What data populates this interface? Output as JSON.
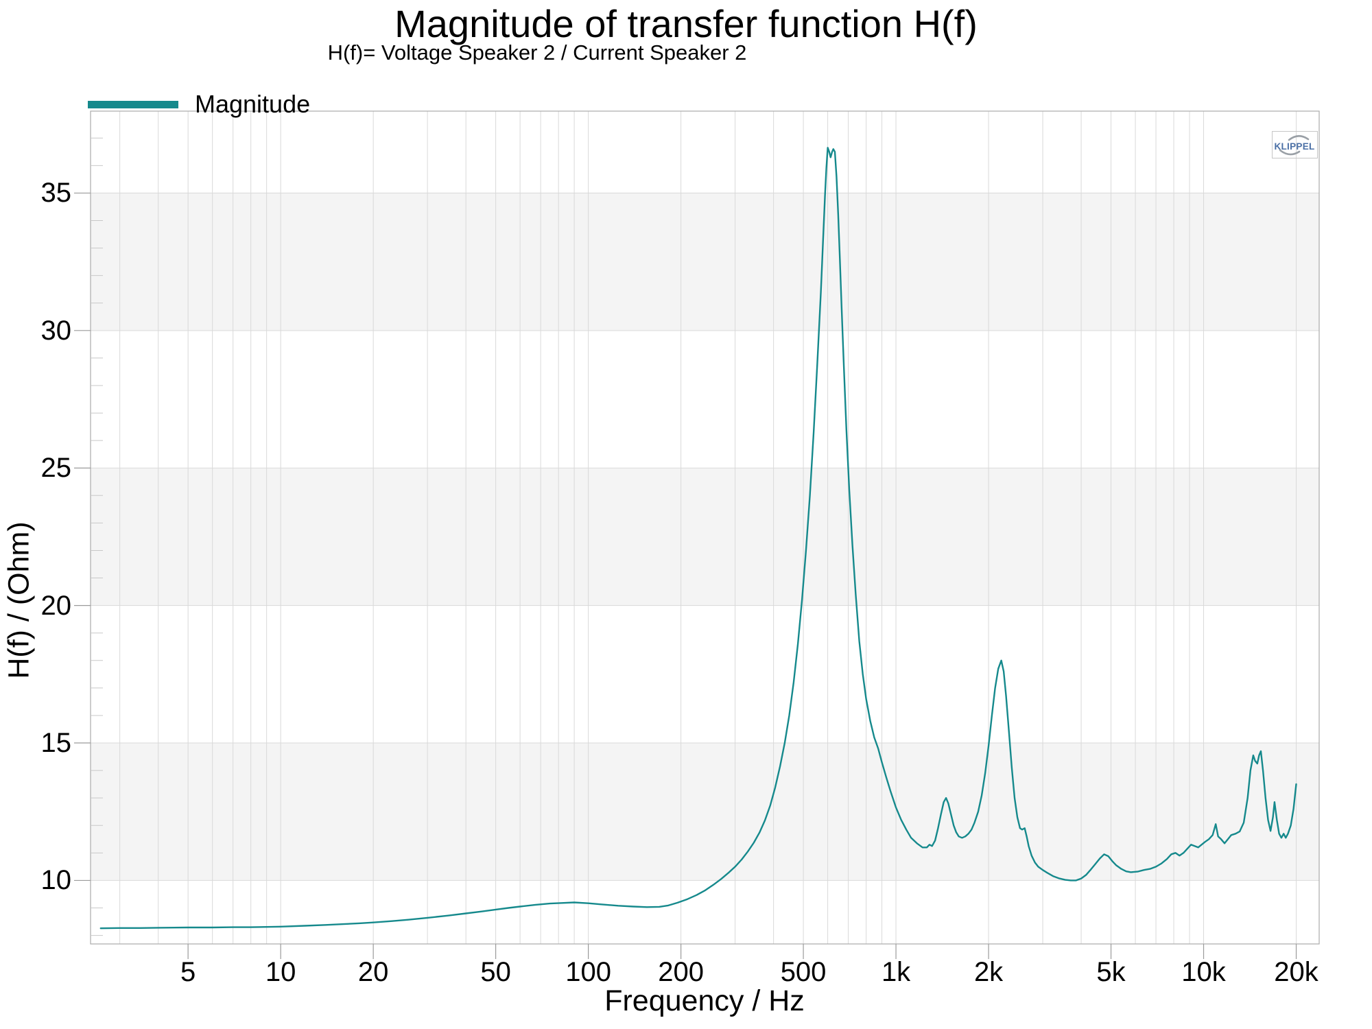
{
  "watermark": {
    "text": "KLIPPEL"
  },
  "colors": {
    "accent_teal": "#15898c",
    "band": "#f4f4f4",
    "grid": "#d9d9d9",
    "border": "#ababab",
    "tick_major": "#9a9a9a",
    "tick_minor": "#c8c8c8",
    "logo_blue": "#4a6fa5",
    "logo_arc": "#9aa0a6"
  },
  "chart_data": {
    "type": "line",
    "title": "Magnitude of transfer function H(f)",
    "subtitle": "H(f)= Voltage Speaker 2 / Current Speaker 2",
    "xlabel": "Frequency / Hz",
    "ylabel": "H(f) / (Ohm)",
    "x_scale": "log",
    "xlim": [
      2.41,
      23750
    ],
    "ylim": [
      7.69,
      37.98
    ],
    "x_ticks": [
      {
        "f": 5,
        "label": "5"
      },
      {
        "f": 10,
        "label": "10"
      },
      {
        "f": 20,
        "label": "20"
      },
      {
        "f": 50,
        "label": "50"
      },
      {
        "f": 100,
        "label": "100"
      },
      {
        "f": 200,
        "label": "200"
      },
      {
        "f": 500,
        "label": "500"
      },
      {
        "f": 1000,
        "label": "1k"
      },
      {
        "f": 2000,
        "label": "2k"
      },
      {
        "f": 5000,
        "label": "5k"
      },
      {
        "f": 10000,
        "label": "10k"
      },
      {
        "f": 20000,
        "label": "20k"
      }
    ],
    "y_ticks": [
      {
        "v": 10,
        "label": "10"
      },
      {
        "v": 15,
        "label": "15"
      },
      {
        "v": 20,
        "label": "20"
      },
      {
        "v": 25,
        "label": "25"
      },
      {
        "v": 30,
        "label": "30"
      },
      {
        "v": 35,
        "label": "35"
      }
    ],
    "y_minor_step": 1,
    "shaded_bands": [
      [
        10,
        15
      ],
      [
        20,
        25
      ],
      [
        30,
        35
      ]
    ],
    "legend_position": "top-left",
    "grid": "on",
    "series": [
      {
        "name": "Magnitude",
        "color": "#15898c",
        "points": [
          [
            2.6,
            8.26
          ],
          [
            3,
            8.27
          ],
          [
            3.5,
            8.27
          ],
          [
            4,
            8.28
          ],
          [
            5,
            8.29
          ],
          [
            6,
            8.29
          ],
          [
            7,
            8.3
          ],
          [
            8,
            8.3
          ],
          [
            9,
            8.31
          ],
          [
            10,
            8.32
          ],
          [
            12,
            8.35
          ],
          [
            14,
            8.38
          ],
          [
            16,
            8.41
          ],
          [
            18,
            8.44
          ],
          [
            20,
            8.47
          ],
          [
            23,
            8.52
          ],
          [
            26,
            8.57
          ],
          [
            30,
            8.64
          ],
          [
            35,
            8.72
          ],
          [
            40,
            8.8
          ],
          [
            45,
            8.87
          ],
          [
            50,
            8.94
          ],
          [
            55,
            9.0
          ],
          [
            60,
            9.05
          ],
          [
            67,
            9.11
          ],
          [
            75,
            9.16
          ],
          [
            82,
            9.18
          ],
          [
            90,
            9.2
          ],
          [
            100,
            9.17
          ],
          [
            110,
            9.13
          ],
          [
            125,
            9.08
          ],
          [
            140,
            9.05
          ],
          [
            155,
            9.03
          ],
          [
            170,
            9.04
          ],
          [
            182,
            9.09
          ],
          [
            195,
            9.19
          ],
          [
            210,
            9.32
          ],
          [
            225,
            9.47
          ],
          [
            240,
            9.64
          ],
          [
            255,
            9.84
          ],
          [
            270,
            10.05
          ],
          [
            285,
            10.27
          ],
          [
            300,
            10.5
          ],
          [
            315,
            10.76
          ],
          [
            330,
            11.05
          ],
          [
            345,
            11.37
          ],
          [
            360,
            11.74
          ],
          [
            375,
            12.18
          ],
          [
            390,
            12.72
          ],
          [
            405,
            13.38
          ],
          [
            420,
            14.15
          ],
          [
            435,
            15.0
          ],
          [
            450,
            16.0
          ],
          [
            465,
            17.2
          ],
          [
            480,
            18.6
          ],
          [
            495,
            20.2
          ],
          [
            510,
            22.0
          ],
          [
            525,
            24.0
          ],
          [
            540,
            26.3
          ],
          [
            555,
            28.8
          ],
          [
            570,
            31.4
          ],
          [
            580,
            33.4
          ],
          [
            588,
            34.9
          ],
          [
            594,
            35.9
          ],
          [
            600,
            36.65
          ],
          [
            607,
            36.5
          ],
          [
            613,
            36.3
          ],
          [
            620,
            36.5
          ],
          [
            626,
            36.6
          ],
          [
            633,
            36.5
          ],
          [
            641,
            35.6
          ],
          [
            649,
            34.2
          ],
          [
            657,
            32.6
          ],
          [
            666,
            30.8
          ],
          [
            677,
            28.7
          ],
          [
            690,
            26.4
          ],
          [
            705,
            24.2
          ],
          [
            722,
            22.2
          ],
          [
            740,
            20.4
          ],
          [
            760,
            18.7
          ],
          [
            780,
            17.5
          ],
          [
            800,
            16.6
          ],
          [
            825,
            15.8
          ],
          [
            850,
            15.2
          ],
          [
            875,
            14.8
          ],
          [
            900,
            14.3
          ],
          [
            930,
            13.75
          ],
          [
            960,
            13.25
          ],
          [
            1000,
            12.65
          ],
          [
            1040,
            12.2
          ],
          [
            1080,
            11.85
          ],
          [
            1120,
            11.55
          ],
          [
            1170,
            11.35
          ],
          [
            1220,
            11.2
          ],
          [
            1260,
            11.2
          ],
          [
            1285,
            11.3
          ],
          [
            1310,
            11.25
          ],
          [
            1340,
            11.45
          ],
          [
            1370,
            11.9
          ],
          [
            1400,
            12.4
          ],
          [
            1430,
            12.85
          ],
          [
            1455,
            13.0
          ],
          [
            1480,
            12.8
          ],
          [
            1510,
            12.4
          ],
          [
            1540,
            12.0
          ],
          [
            1570,
            11.75
          ],
          [
            1600,
            11.6
          ],
          [
            1640,
            11.55
          ],
          [
            1680,
            11.6
          ],
          [
            1720,
            11.7
          ],
          [
            1760,
            11.85
          ],
          [
            1800,
            12.1
          ],
          [
            1850,
            12.5
          ],
          [
            1900,
            13.1
          ],
          [
            1950,
            13.9
          ],
          [
            2000,
            14.9
          ],
          [
            2050,
            16.0
          ],
          [
            2100,
            17.0
          ],
          [
            2150,
            17.7
          ],
          [
            2200,
            18.0
          ],
          [
            2240,
            17.6
          ],
          [
            2280,
            16.7
          ],
          [
            2330,
            15.4
          ],
          [
            2380,
            14.1
          ],
          [
            2430,
            13.0
          ],
          [
            2480,
            12.3
          ],
          [
            2530,
            11.9
          ],
          [
            2570,
            11.85
          ],
          [
            2620,
            11.9
          ],
          [
            2660,
            11.6
          ],
          [
            2700,
            11.25
          ],
          [
            2760,
            10.9
          ],
          [
            2830,
            10.65
          ],
          [
            2900,
            10.5
          ],
          [
            3000,
            10.38
          ],
          [
            3100,
            10.28
          ],
          [
            3250,
            10.15
          ],
          [
            3400,
            10.07
          ],
          [
            3550,
            10.02
          ],
          [
            3700,
            10.0
          ],
          [
            3850,
            10.0
          ],
          [
            4000,
            10.07
          ],
          [
            4150,
            10.2
          ],
          [
            4300,
            10.4
          ],
          [
            4450,
            10.6
          ],
          [
            4600,
            10.8
          ],
          [
            4750,
            10.95
          ],
          [
            4900,
            10.88
          ],
          [
            5050,
            10.7
          ],
          [
            5200,
            10.55
          ],
          [
            5400,
            10.42
          ],
          [
            5600,
            10.33
          ],
          [
            5800,
            10.3
          ],
          [
            6100,
            10.32
          ],
          [
            6400,
            10.38
          ],
          [
            6700,
            10.42
          ],
          [
            7000,
            10.5
          ],
          [
            7300,
            10.62
          ],
          [
            7600,
            10.78
          ],
          [
            7850,
            10.95
          ],
          [
            8100,
            11.0
          ],
          [
            8350,
            10.9
          ],
          [
            8600,
            11.0
          ],
          [
            8850,
            11.15
          ],
          [
            9100,
            11.3
          ],
          [
            9350,
            11.25
          ],
          [
            9600,
            11.2
          ],
          [
            9850,
            11.3
          ],
          [
            10100,
            11.4
          ],
          [
            10400,
            11.5
          ],
          [
            10700,
            11.65
          ],
          [
            10950,
            12.05
          ],
          [
            11150,
            11.6
          ],
          [
            11400,
            11.5
          ],
          [
            11700,
            11.35
          ],
          [
            12000,
            11.5
          ],
          [
            12300,
            11.65
          ],
          [
            12700,
            11.7
          ],
          [
            13100,
            11.78
          ],
          [
            13500,
            12.1
          ],
          [
            13900,
            13.0
          ],
          [
            14200,
            14.0
          ],
          [
            14500,
            14.55
          ],
          [
            14700,
            14.35
          ],
          [
            14950,
            14.25
          ],
          [
            15150,
            14.55
          ],
          [
            15350,
            14.7
          ],
          [
            15600,
            14.0
          ],
          [
            15900,
            13.0
          ],
          [
            16200,
            12.2
          ],
          [
            16500,
            11.8
          ],
          [
            16800,
            12.3
          ],
          [
            17000,
            12.85
          ],
          [
            17300,
            12.2
          ],
          [
            17600,
            11.7
          ],
          [
            17900,
            11.55
          ],
          [
            18200,
            11.7
          ],
          [
            18500,
            11.55
          ],
          [
            18800,
            11.7
          ],
          [
            19200,
            12.0
          ],
          [
            19600,
            12.6
          ],
          [
            20000,
            13.5
          ]
        ]
      }
    ]
  }
}
